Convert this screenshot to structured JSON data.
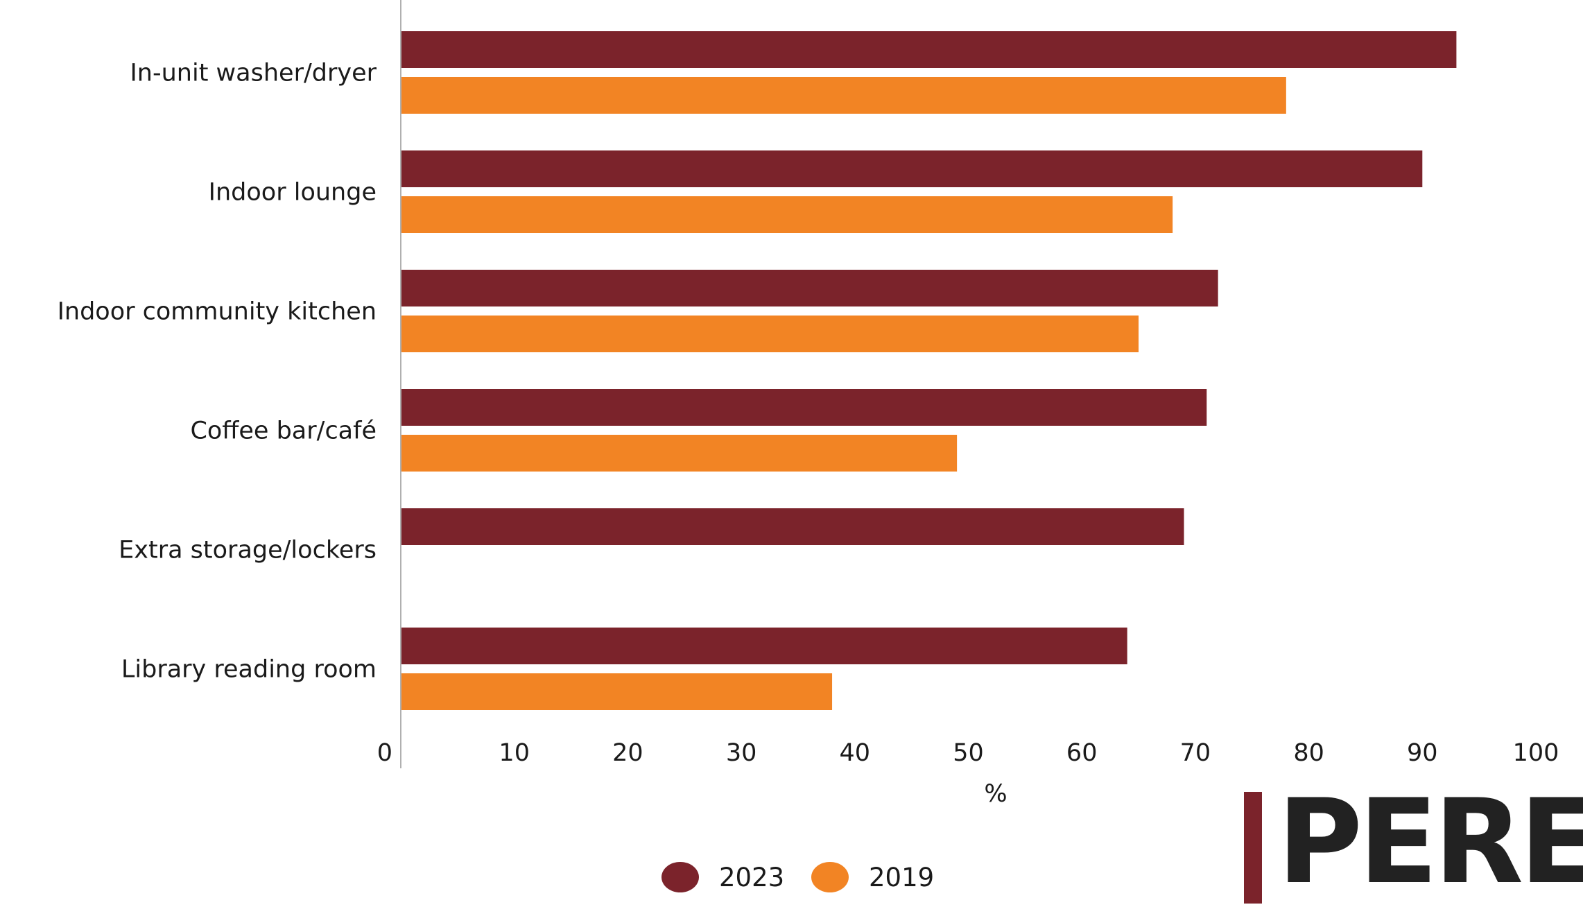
{
  "chart_data": {
    "type": "bar",
    "orientation": "horizontal",
    "categories": [
      "In-unit washer/dryer",
      "Indoor lounge",
      "Indoor community kitchen",
      "Coffee bar/café",
      "Extra storage/lockers",
      "Library reading room"
    ],
    "series": [
      {
        "name": "2023",
        "color": "#7b232b",
        "values": [
          93,
          90,
          72,
          71,
          69,
          64
        ]
      },
      {
        "name": "2019",
        "color": "#f28424",
        "values": [
          78,
          68,
          65,
          49,
          null,
          38
        ]
      }
    ],
    "xlim": [
      0,
      100
    ],
    "xticks": [
      "0",
      "10",
      "20",
      "30",
      "40",
      "50",
      "60",
      "70",
      "80",
      "90",
      "100"
    ],
    "xlabel": "%",
    "ylabel": "",
    "title": "",
    "grid": false,
    "legend_position": "bottom-center"
  },
  "logo": {
    "text": "PERE",
    "bar_color": "#7b232b",
    "text_color": "#222222"
  }
}
